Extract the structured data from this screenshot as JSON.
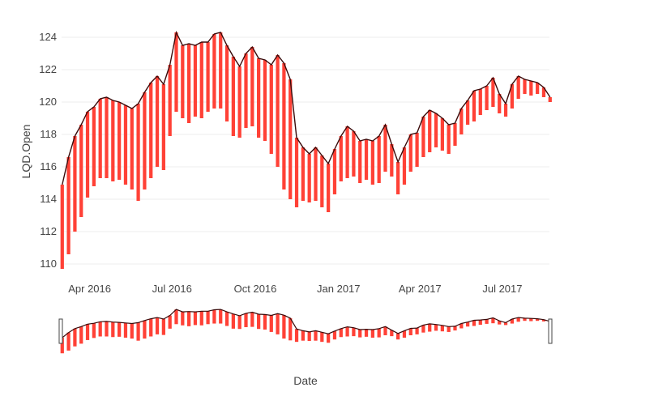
{
  "chart_data": {
    "type": "ohlc-candlestick",
    "title": "",
    "xlabel": "Date",
    "ylabel": "LQD.Open",
    "x_range": [
      "2016-03-01",
      "2017-08-22"
    ],
    "ylim": [
      109.5,
      124.6
    ],
    "x_ticks": [
      {
        "date": "2016-04-01",
        "label": "Apr 2016"
      },
      {
        "date": "2016-07-01",
        "label": "Jul 2016"
      },
      {
        "date": "2016-10-01",
        "label": "Oct 2016"
      },
      {
        "date": "2017-01-01",
        "label": "Jan 2017"
      },
      {
        "date": "2017-04-01",
        "label": "Apr 2017"
      },
      {
        "date": "2017-07-01",
        "label": "Jul 2017"
      }
    ],
    "y_ticks": [
      110,
      112,
      114,
      116,
      118,
      120,
      122,
      124
    ],
    "grid": true,
    "legend": "none",
    "range_slider": true,
    "colors": {
      "decreasing": "#ff4136",
      "line": "#3a0a0a",
      "grid": "#eeeeee"
    },
    "series": [
      {
        "name": "",
        "x": [
          "2016-03-01",
          "2016-03-08",
          "2016-03-15",
          "2016-03-22",
          "2016-03-29",
          "2016-04-05",
          "2016-04-12",
          "2016-04-19",
          "2016-04-26",
          "2016-05-03",
          "2016-05-10",
          "2016-05-17",
          "2016-05-24",
          "2016-05-31",
          "2016-06-07",
          "2016-06-14",
          "2016-06-21",
          "2016-06-28",
          "2016-07-05",
          "2016-07-12",
          "2016-07-19",
          "2016-07-26",
          "2016-08-02",
          "2016-08-09",
          "2016-08-16",
          "2016-08-23",
          "2016-08-30",
          "2016-09-06",
          "2016-09-13",
          "2016-09-20",
          "2016-09-27",
          "2016-10-04",
          "2016-10-11",
          "2016-10-18",
          "2016-10-25",
          "2016-11-01",
          "2016-11-08",
          "2016-11-15",
          "2016-11-22",
          "2016-11-29",
          "2016-12-06",
          "2016-12-13",
          "2016-12-20",
          "2016-12-27",
          "2017-01-03",
          "2017-01-10",
          "2017-01-17",
          "2017-01-24",
          "2017-01-31",
          "2017-02-07",
          "2017-02-14",
          "2017-02-21",
          "2017-02-28",
          "2017-03-07",
          "2017-03-14",
          "2017-03-21",
          "2017-03-28",
          "2017-04-04",
          "2017-04-11",
          "2017-04-18",
          "2017-04-25",
          "2017-05-02",
          "2017-05-09",
          "2017-05-16",
          "2017-05-23",
          "2017-05-30",
          "2017-06-06",
          "2017-06-13",
          "2017-06-20",
          "2017-06-27",
          "2017-07-04",
          "2017-07-11",
          "2017-07-18",
          "2017-07-25",
          "2017-08-01",
          "2017-08-08",
          "2017-08-15",
          "2017-08-22"
        ],
        "high": [
          114.9,
          116.6,
          117.9,
          118.6,
          119.4,
          119.7,
          120.2,
          120.3,
          120.1,
          120.0,
          119.8,
          119.6,
          119.9,
          120.6,
          121.2,
          121.6,
          121.1,
          122.3,
          124.3,
          123.5,
          123.6,
          123.5,
          123.7,
          123.7,
          124.2,
          124.3,
          123.5,
          122.8,
          122.2,
          123.0,
          123.4,
          122.7,
          122.6,
          122.3,
          122.9,
          122.4,
          121.4,
          117.8,
          117.2,
          116.8,
          117.2,
          116.7,
          116.2,
          117.1,
          117.9,
          118.5,
          118.2,
          117.6,
          117.7,
          117.6,
          117.9,
          118.6,
          117.4,
          116.3,
          117.2,
          118.0,
          118.1,
          119.1,
          119.5,
          119.3,
          119.0,
          118.6,
          118.7,
          119.6,
          120.1,
          120.7,
          120.8,
          121.0,
          121.5,
          120.5,
          119.9,
          121.1,
          121.6,
          121.4,
          121.3,
          121.2,
          120.9,
          120.3
        ],
        "low": [
          109.7,
          110.6,
          112.0,
          112.9,
          114.1,
          114.8,
          115.3,
          115.3,
          115.1,
          115.2,
          114.9,
          114.6,
          113.9,
          114.6,
          115.3,
          116.0,
          115.8,
          117.9,
          119.4,
          119.0,
          118.7,
          119.1,
          119.0,
          119.4,
          119.6,
          119.6,
          118.8,
          117.9,
          117.8,
          118.4,
          118.5,
          117.8,
          117.6,
          116.8,
          116.0,
          114.6,
          114.0,
          113.5,
          113.9,
          113.8,
          113.9,
          113.5,
          113.2,
          114.3,
          115.1,
          115.3,
          115.4,
          115.0,
          115.2,
          114.9,
          115.0,
          115.7,
          115.4,
          114.3,
          114.9,
          115.7,
          116.0,
          116.6,
          116.9,
          117.2,
          117.0,
          116.8,
          117.3,
          118.0,
          118.6,
          118.8,
          119.2,
          119.5,
          119.7,
          119.3,
          119.1,
          119.6,
          120.2,
          120.5,
          120.4,
          120.5,
          120.3,
          120.0
        ],
        "close": [
          114.6,
          116.2,
          117.5,
          118.2,
          118.9,
          119.2,
          119.6,
          119.8,
          119.7,
          119.6,
          119.3,
          119.2,
          118.2,
          119.6,
          120.5,
          121.0,
          120.6,
          121.8,
          123.4,
          123.0,
          123.1,
          122.9,
          123.3,
          123.2,
          123.7,
          123.5,
          122.9,
          122.4,
          121.6,
          121.9,
          122.7,
          122.3,
          121.7,
          121.5,
          122.1,
          121.3,
          119.1,
          116.9,
          116.6,
          116.1,
          116.7,
          116.3,
          116.1,
          116.5,
          117.6,
          117.9,
          117.6,
          117.0,
          117.3,
          117.1,
          117.4,
          118.3,
          116.9,
          115.8,
          116.7,
          117.5,
          117.7,
          118.6,
          118.9,
          118.7,
          118.2,
          118.2,
          118.5,
          119.2,
          119.8,
          120.3,
          120.5,
          120.6,
          121.1,
          120.1,
          119.7,
          120.7,
          121.3,
          121.1,
          120.9,
          121.0,
          120.5,
          120.1
        ]
      }
    ]
  }
}
